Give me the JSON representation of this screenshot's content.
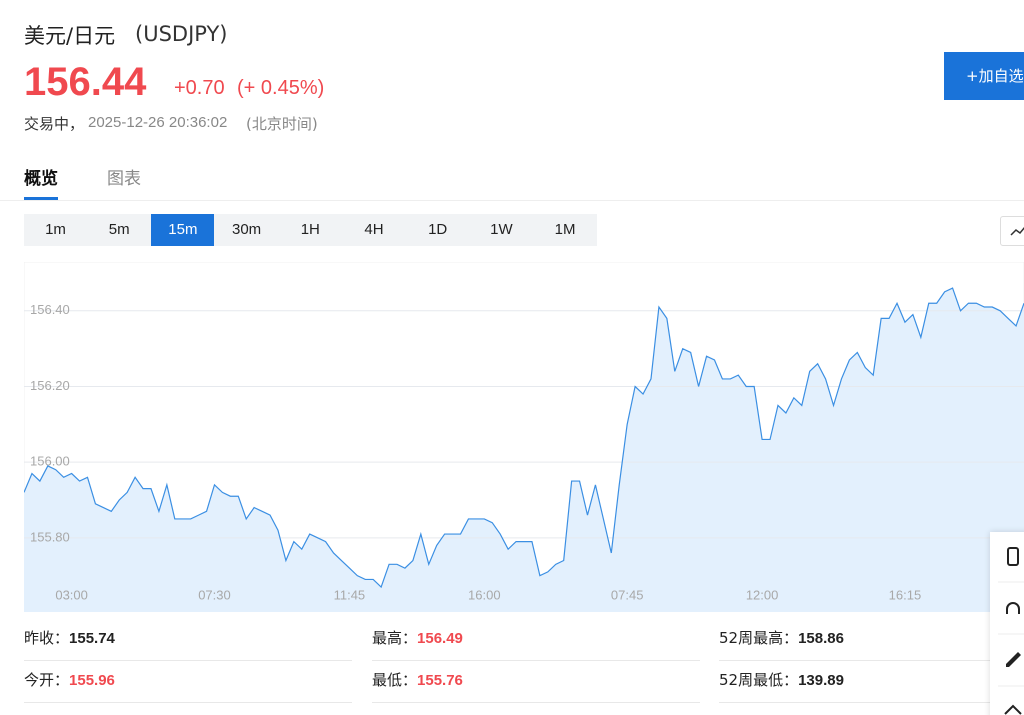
{
  "header": {
    "name": "美元/日元",
    "code": "(USDJPY)",
    "price": 156.44,
    "change": "+0.70",
    "change_pct": "(+ 0.45%)",
    "status": "交易中，",
    "time": "2025-12-26 20:36:02",
    "timezone": "(北京时间)",
    "button": "+加自选"
  },
  "tabs": {
    "items": [
      "概览",
      "图表"
    ],
    "active": 0
  },
  "intervals": {
    "items": [
      "1m",
      "5m",
      "15m",
      "30m",
      "1H",
      "4H",
      "1D",
      "1W",
      "1M"
    ],
    "active": 2
  },
  "chart_data": {
    "type": "line",
    "color": "#3b8fe3",
    "fill": "#e3f0fd",
    "grid": true,
    "categories": [
      null,
      null,
      null,
      null,
      null,
      null,
      "03:00",
      null,
      null,
      null,
      null,
      null,
      null,
      null,
      null,
      null,
      null,
      null,
      null,
      null,
      null,
      null,
      null,
      null,
      "07:30",
      null,
      null,
      null,
      null,
      null,
      null,
      null,
      null,
      null,
      null,
      null,
      null,
      null,
      null,
      null,
      null,
      "11:45",
      null,
      null,
      null,
      null,
      null,
      null,
      null,
      null,
      null,
      null,
      null,
      null,
      null,
      null,
      null,
      null,
      "16:00",
      null,
      null,
      null,
      null,
      null,
      null,
      null,
      null,
      null,
      null,
      null,
      null,
      null,
      null,
      null,
      null,
      null,
      "07:45",
      null,
      null,
      null,
      null,
      null,
      null,
      null,
      null,
      null,
      null,
      null,
      null,
      null,
      null,
      null,
      null,
      "12:00",
      null,
      null,
      null,
      null,
      null,
      null,
      null,
      null,
      null,
      null,
      null,
      null,
      null,
      null,
      null,
      null,
      null,
      "16:15",
      null,
      null,
      null,
      null,
      null,
      null,
      null,
      null,
      null,
      null,
      null,
      null,
      null,
      null,
      null
    ],
    "values": [
      155.92,
      155.97,
      155.95,
      155.99,
      155.98,
      155.96,
      155.97,
      155.95,
      155.96,
      155.89,
      155.88,
      155.87,
      155.9,
      155.92,
      155.96,
      155.93,
      155.93,
      155.87,
      155.94,
      155.85,
      155.85,
      155.85,
      155.86,
      155.87,
      155.94,
      155.92,
      155.91,
      155.91,
      155.85,
      155.88,
      155.87,
      155.86,
      155.82,
      155.74,
      155.79,
      155.77,
      155.81,
      155.8,
      155.79,
      155.76,
      155.74,
      155.72,
      155.7,
      155.69,
      155.69,
      155.67,
      155.73,
      155.73,
      155.72,
      155.74,
      155.81,
      155.73,
      155.78,
      155.81,
      155.81,
      155.81,
      155.85,
      155.85,
      155.85,
      155.84,
      155.81,
      155.77,
      155.79,
      155.79,
      155.79,
      155.7,
      155.71,
      155.73,
      155.74,
      155.95,
      155.95,
      155.86,
      155.94,
      155.85,
      155.76,
      155.94,
      156.1,
      156.2,
      156.18,
      156.22,
      156.41,
      156.38,
      156.24,
      156.3,
      156.29,
      156.2,
      156.28,
      156.27,
      156.22,
      156.22,
      156.23,
      156.2,
      156.2,
      156.06,
      156.06,
      156.15,
      156.13,
      156.17,
      156.15,
      156.24,
      156.26,
      156.22,
      156.15,
      156.22,
      156.27,
      156.29,
      156.25,
      156.23,
      156.38,
      156.38,
      156.42,
      156.37,
      156.39,
      156.33,
      156.42,
      156.42,
      156.45,
      156.46,
      156.4,
      156.42,
      156.42,
      156.41,
      156.41,
      156.4,
      156.38,
      156.36,
      156.42
    ],
    "ylim": [
      155.604,
      156.529
    ],
    "yticks": [
      {
        "value": 155.8,
        "label": "155.80"
      },
      {
        "value": 156.0,
        "label": "156.00"
      },
      {
        "value": 156.2,
        "label": "156.20"
      },
      {
        "value": 156.4,
        "label": "156.40"
      }
    ]
  },
  "stats": [
    [
      {
        "label": "昨收：",
        "value": 155.74,
        "up": false
      },
      {
        "label": "最高：",
        "value": 156.49,
        "up": true
      },
      {
        "label": "52周最高：",
        "value": 158.86,
        "up": false
      }
    ],
    [
      {
        "label": "今开：",
        "value": 155.96,
        "up": true
      },
      {
        "label": "最低：",
        "value": 155.76,
        "up": true
      },
      {
        "label": "52周最低：",
        "value": 139.89,
        "up": false
      }
    ]
  ]
}
